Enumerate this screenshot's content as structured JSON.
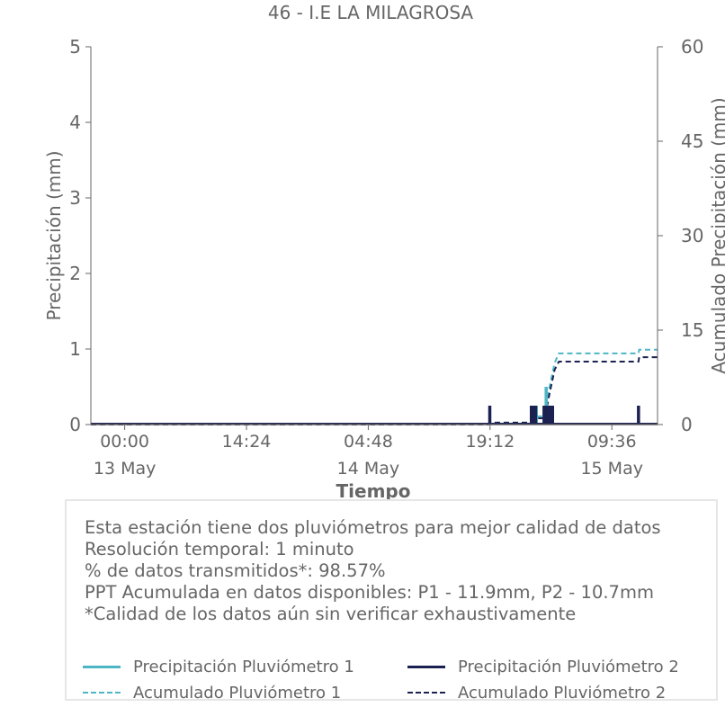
{
  "chart_data": {
    "type": "line",
    "title": "46 - I.E LA MILAGROSA",
    "xlabel": "Tiempo",
    "ylabel": "Precipitación (mm)",
    "y2label": "Acumulado Precipitación (mm)",
    "ylim": [
      0,
      5
    ],
    "y2lim": [
      0,
      60
    ],
    "yticks": [
      "0",
      "1",
      "2",
      "3",
      "4",
      "5"
    ],
    "y2ticks": [
      "0",
      "15",
      "30",
      "45",
      "60"
    ],
    "xlim": [
      "2025-05-12T20:00",
      "2025-05-15T15:00"
    ],
    "xticks": [
      {
        "time": "2025-05-13T00:00",
        "label": "00:00",
        "date": "13 May"
      },
      {
        "time": "2025-05-13T14:24",
        "label": "14:24",
        "date": ""
      },
      {
        "time": "2025-05-14T04:48",
        "label": "04:48",
        "date": "14 May"
      },
      {
        "time": "2025-05-14T19:12",
        "label": "19:12",
        "date": ""
      },
      {
        "time": "2025-05-15T09:36",
        "label": "09:36",
        "date": "15 May"
      }
    ],
    "legend_position": "bottom",
    "series": [
      {
        "name": "Precipitación Pluviómetro 1",
        "axis": "left",
        "style": "solid",
        "color": "#4db6c4",
        "points": [
          [
            "2025-05-15T00:10",
            0.25
          ],
          [
            "2025-05-15T00:40",
            0.25
          ],
          [
            "2025-05-15T01:50",
            0.5
          ],
          [
            "2025-05-15T02:00",
            0.25
          ],
          [
            "2025-05-15T02:20",
            0.25
          ]
        ]
      },
      {
        "name": "Precipitación Pluviómetro 2",
        "axis": "left",
        "style": "solid",
        "color": "#1b2150",
        "points": [
          [
            "2025-05-14T19:10",
            0.25
          ],
          [
            "2025-05-15T00:05",
            0.25
          ],
          [
            "2025-05-15T00:20",
            0.25
          ],
          [
            "2025-05-15T00:35",
            0.25
          ],
          [
            "2025-05-15T01:35",
            0.25
          ],
          [
            "2025-05-15T01:50",
            0.25
          ],
          [
            "2025-05-15T02:05",
            0.25
          ],
          [
            "2025-05-15T02:20",
            0.25
          ],
          [
            "2025-05-15T02:35",
            0.25
          ],
          [
            "2025-05-15T12:45",
            0.25
          ]
        ]
      },
      {
        "name": "Acumulado Pluviómetro 1",
        "axis": "right",
        "style": "dashed",
        "color": "#4db6c4",
        "points": [
          [
            "2025-05-12T20:00",
            0
          ],
          [
            "2025-05-14T19:00",
            0
          ],
          [
            "2025-05-14T19:10",
            0.3
          ],
          [
            "2025-05-15T00:00",
            0.3
          ],
          [
            "2025-05-15T00:40",
            1.3
          ],
          [
            "2025-05-15T01:40",
            1.3
          ],
          [
            "2025-05-15T02:10",
            5.5
          ],
          [
            "2025-05-15T02:50",
            9.8
          ],
          [
            "2025-05-15T03:20",
            11.3
          ],
          [
            "2025-05-15T12:45",
            11.3
          ],
          [
            "2025-05-15T12:50",
            11.9
          ],
          [
            "2025-05-15T15:00",
            11.9
          ]
        ]
      },
      {
        "name": "Acumulado Pluviómetro 2",
        "axis": "right",
        "style": "dashed",
        "color": "#1b2150",
        "points": [
          [
            "2025-05-12T20:00",
            0
          ],
          [
            "2025-05-14T19:00",
            0
          ],
          [
            "2025-05-14T19:10",
            0.3
          ],
          [
            "2025-05-15T00:00",
            0.3
          ],
          [
            "2025-05-15T00:40",
            1.0
          ],
          [
            "2025-05-15T01:40",
            1.0
          ],
          [
            "2025-05-15T02:10",
            4.5
          ],
          [
            "2025-05-15T02:50",
            8.7
          ],
          [
            "2025-05-15T03:20",
            10.0
          ],
          [
            "2025-05-15T12:45",
            10.0
          ],
          [
            "2025-05-15T12:50",
            10.7
          ],
          [
            "2025-05-15T15:00",
            10.7
          ]
        ]
      }
    ]
  },
  "info": {
    "line1": "Esta estación tiene dos pluviómetros para mejor calidad de datos",
    "line2": "Resolución temporal: 1 minuto",
    "line3": "% de datos transmitidos*: 98.57%",
    "line4": "PPT Acumulada en datos disponibles: P1 - 11.9mm, P2 - 10.7mm",
    "line5": "*Calidad de los datos aún sin verificar exhaustivamente"
  },
  "legend": {
    "item1": "Precipitación Pluviómetro 1",
    "item2": "Precipitación Pluviómetro 2",
    "item3": "Acumulado Pluviómetro 1",
    "item4": "Acumulado Pluviómetro 2"
  },
  "colors": {
    "pluviometro1": "#4db6c4",
    "pluviometro2": "#1b2150",
    "axis": "#666666",
    "box_border": "#e6e6e6"
  }
}
